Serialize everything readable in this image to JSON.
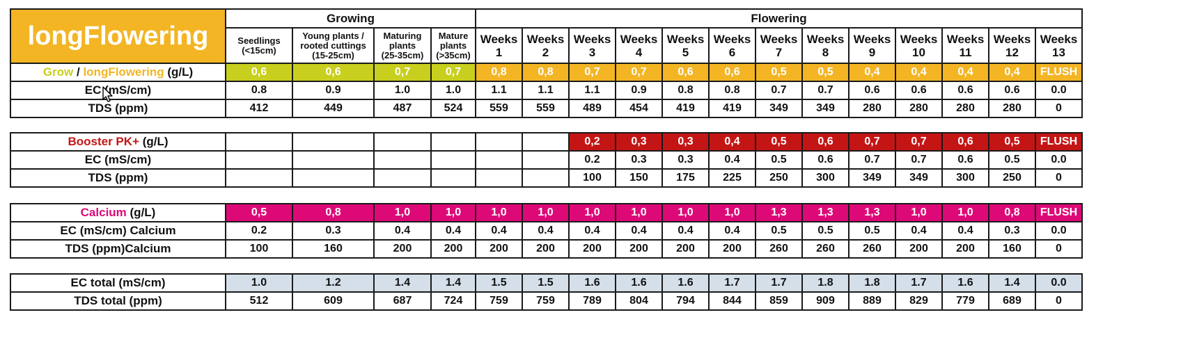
{
  "brand": "longFlowering",
  "phases": {
    "growing": "Growing",
    "flowering": "Flowering"
  },
  "stages": [
    "Seedlings\n(<15cm)",
    "Young plants /\nrooted cuttings\n(15-25cm)",
    "Maturing\nplants\n(25-35cm)",
    "Mature\nplants\n(>35cm)"
  ],
  "weeks": [
    "Weeks\n1",
    "Weeks\n2",
    "Weeks\n3",
    "Weeks\n4",
    "Weeks\n5",
    "Weeks\n6",
    "Weeks\n7",
    "Weeks\n8",
    "Weeks\n9",
    "Weeks\n10",
    "Weeks\n11",
    "Weeks\n12",
    "Weeks\n13"
  ],
  "colors": {
    "grow": "#c8cf1e",
    "longflowering": "#f3b524",
    "booster": "#c41515",
    "calcium": "#dd0977",
    "total": "#d5dfea"
  },
  "section1": {
    "label_grow": "Grow",
    "label_sep": " / ",
    "label_long": "longFlowering",
    "label_unit": " (g/L)",
    "dose": [
      "0,6",
      "0,6",
      "0,7",
      "0,7",
      "0,8",
      "0,8",
      "0,7",
      "0,7",
      "0,6",
      "0,6",
      "0,5",
      "0,5",
      "0,4",
      "0,4",
      "0,4",
      "0,4",
      "FLUSH"
    ],
    "ec_label": "EC (mS/cm)",
    "ec": [
      "0.8",
      "0.9",
      "1.0",
      "1.0",
      "1.1",
      "1.1",
      "1.1",
      "0.9",
      "0.8",
      "0.8",
      "0.7",
      "0.7",
      "0.6",
      "0.6",
      "0.6",
      "0.6",
      "0.0"
    ],
    "tds_label": "TDS (ppm)",
    "tds": [
      "412",
      "449",
      "487",
      "524",
      "559",
      "559",
      "489",
      "454",
      "419",
      "419",
      "349",
      "349",
      "280",
      "280",
      "280",
      "280",
      "0"
    ]
  },
  "section2": {
    "label_name": "Booster PK+",
    "label_unit": " (g/L)",
    "dose": [
      "",
      "",
      "",
      "",
      "",
      "",
      "0,2",
      "0,3",
      "0,3",
      "0,4",
      "0,5",
      "0,6",
      "0,7",
      "0,7",
      "0,6",
      "0,5",
      "FLUSH"
    ],
    "ec_label": "EC (mS/cm)",
    "ec": [
      "",
      "",
      "",
      "",
      "",
      "",
      "0.2",
      "0.3",
      "0.3",
      "0.4",
      "0.5",
      "0.6",
      "0.7",
      "0.7",
      "0.6",
      "0.5",
      "0.0"
    ],
    "tds_label": "TDS (ppm)",
    "tds": [
      "",
      "",
      "",
      "",
      "",
      "",
      "100",
      "150",
      "175",
      "225",
      "250",
      "300",
      "349",
      "349",
      "300",
      "250",
      "0"
    ]
  },
  "section3": {
    "label_name": "Calcium",
    "label_unit": " (g/L)",
    "dose": [
      "0,5",
      "0,8",
      "1,0",
      "1,0",
      "1,0",
      "1,0",
      "1,0",
      "1,0",
      "1,0",
      "1,0",
      "1,3",
      "1,3",
      "1,3",
      "1,0",
      "1,0",
      "0,8",
      "FLUSH"
    ],
    "ec_label": "EC (mS/cm) Calcium",
    "ec": [
      "0.2",
      "0.3",
      "0.4",
      "0.4",
      "0.4",
      "0.4",
      "0.4",
      "0.4",
      "0.4",
      "0.4",
      "0.5",
      "0.5",
      "0.5",
      "0.4",
      "0.4",
      "0.3",
      "0.0"
    ],
    "tds_label": "TDS (ppm)Calcium",
    "tds": [
      "100",
      "160",
      "200",
      "200",
      "200",
      "200",
      "200",
      "200",
      "200",
      "200",
      "260",
      "260",
      "260",
      "200",
      "200",
      "160",
      "0"
    ]
  },
  "section4": {
    "ec_label": "EC total (mS/cm)",
    "ec": [
      "1.0",
      "1.2",
      "1.4",
      "1.4",
      "1.5",
      "1.5",
      "1.6",
      "1.6",
      "1.6",
      "1.7",
      "1.7",
      "1.8",
      "1.8",
      "1.7",
      "1.6",
      "1.4",
      "0.0"
    ],
    "tds_label": "TDS total (ppm)",
    "tds": [
      "512",
      "609",
      "687",
      "724",
      "759",
      "759",
      "789",
      "804",
      "794",
      "844",
      "859",
      "909",
      "889",
      "829",
      "779",
      "689",
      "0"
    ]
  }
}
